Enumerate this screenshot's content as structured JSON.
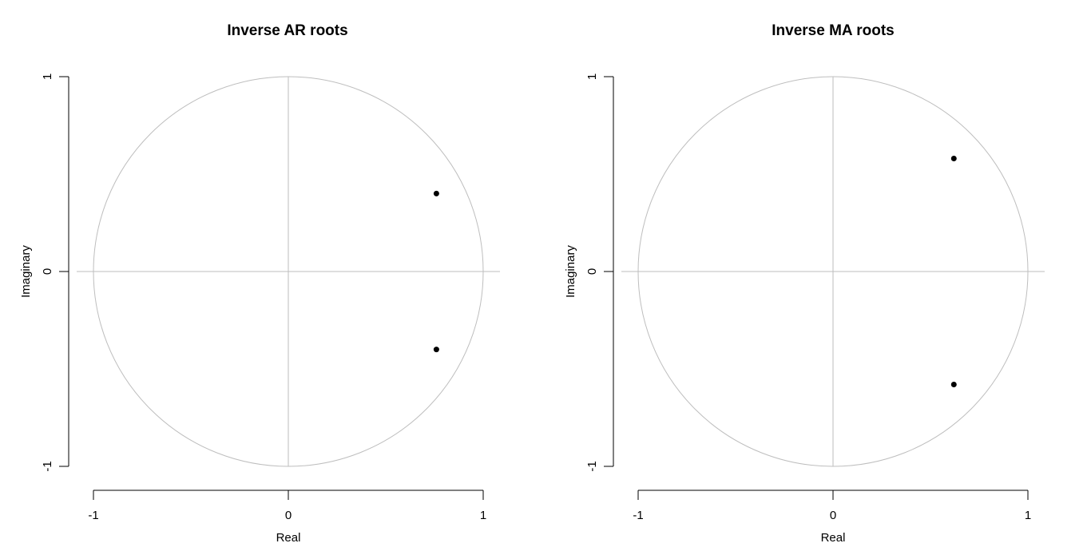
{
  "chart_data": [
    {
      "type": "scatter",
      "title": "Inverse AR roots",
      "xlabel": "Real",
      "ylabel": "Imaginary",
      "xlim": [
        -1,
        1
      ],
      "ylim": [
        -1,
        1
      ],
      "xticks": [
        "-1",
        "0",
        "1"
      ],
      "yticks": [
        "-1",
        "0",
        "1"
      ],
      "unit_circle": true,
      "reference_lines": true,
      "points": [
        {
          "x": 0.76,
          "y": 0.4
        },
        {
          "x": 0.76,
          "y": -0.4
        }
      ]
    },
    {
      "type": "scatter",
      "title": "Inverse MA roots",
      "xlabel": "Real",
      "ylabel": "Imaginary",
      "xlim": [
        -1,
        1
      ],
      "ylim": [
        -1,
        1
      ],
      "xticks": [
        "-1",
        "0",
        "1"
      ],
      "yticks": [
        "-1",
        "0",
        "1"
      ],
      "unit_circle": true,
      "reference_lines": true,
      "points": [
        {
          "x": 0.62,
          "y": 0.58
        },
        {
          "x": 0.62,
          "y": -0.58
        }
      ]
    }
  ]
}
